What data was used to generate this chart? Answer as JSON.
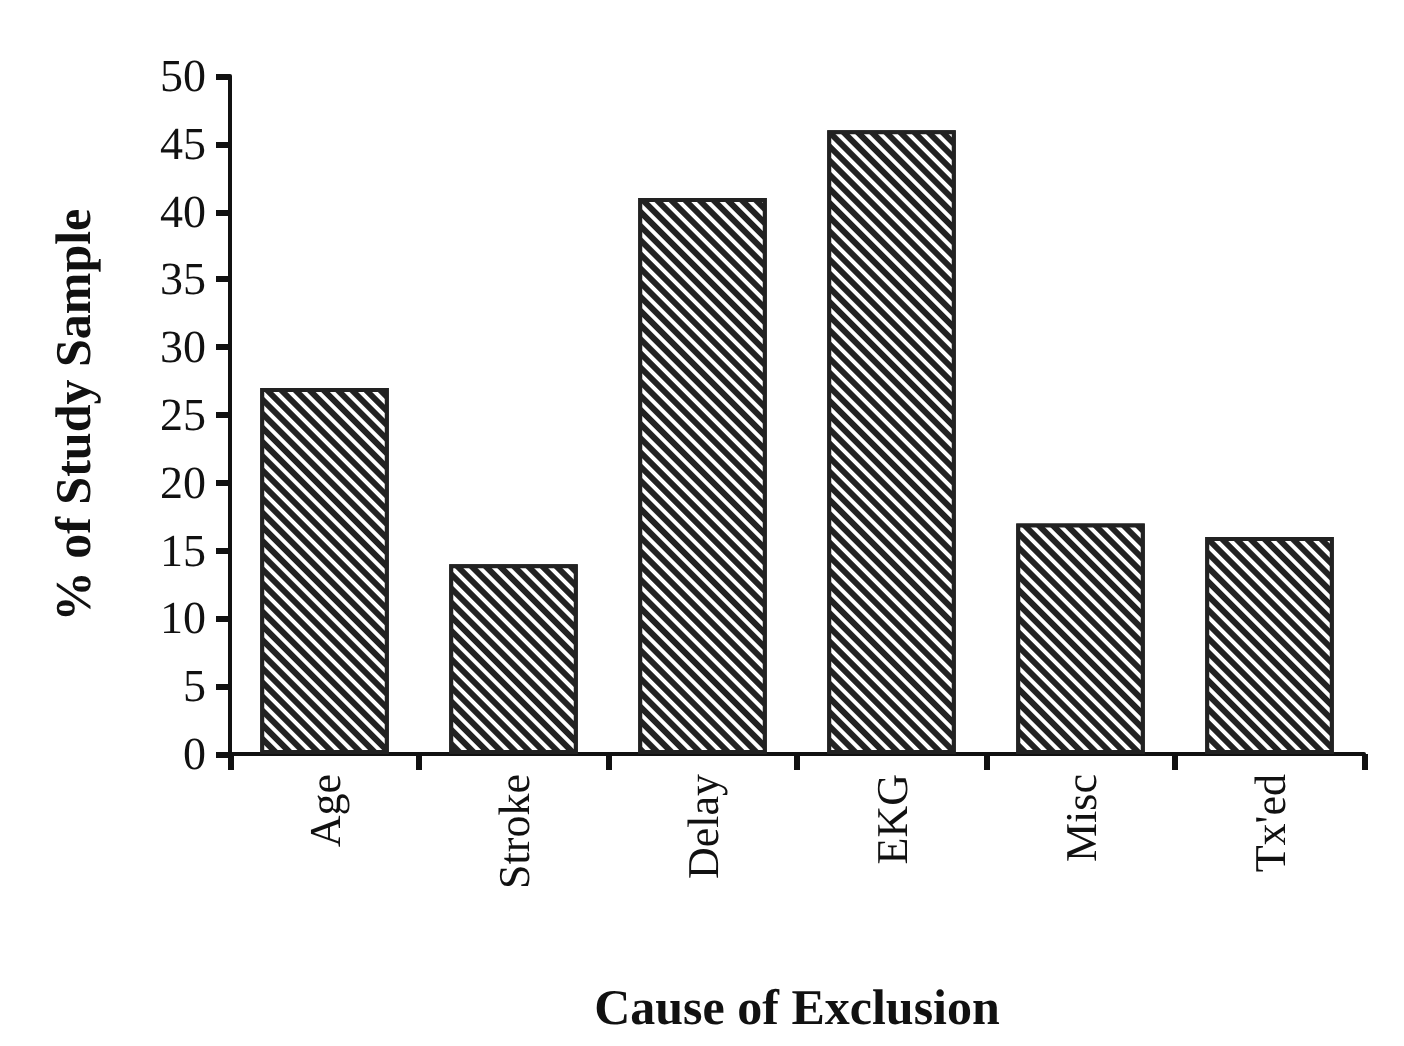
{
  "chart_data": {
    "type": "bar",
    "xlabel": "Cause of Exclusion",
    "ylabel": "% of Study Sample",
    "categories": [
      "Age",
      "Stroke",
      "Delay",
      "EKG",
      "Misc",
      "Tx'ed"
    ],
    "values": [
      27,
      14,
      41,
      46,
      17,
      16
    ],
    "color": "#222222",
    "ylim": [
      0,
      50
    ],
    "yticks": [
      0,
      5,
      10,
      15,
      20,
      25,
      30,
      35,
      40,
      45,
      50
    ],
    "grid": false
  }
}
